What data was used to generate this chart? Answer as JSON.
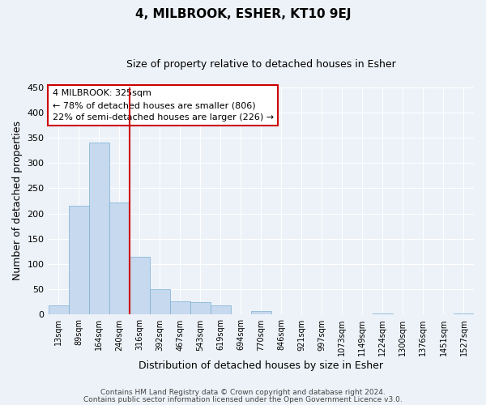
{
  "title": "4, MILBROOK, ESHER, KT10 9EJ",
  "subtitle": "Size of property relative to detached houses in Esher",
  "xlabel": "Distribution of detached houses by size in Esher",
  "ylabel": "Number of detached properties",
  "footnote1": "Contains HM Land Registry data © Crown copyright and database right 2024.",
  "footnote2": "Contains public sector information licensed under the Open Government Licence v3.0.",
  "bar_labels": [
    "13sqm",
    "89sqm",
    "164sqm",
    "240sqm",
    "316sqm",
    "392sqm",
    "467sqm",
    "543sqm",
    "619sqm",
    "694sqm",
    "770sqm",
    "846sqm",
    "921sqm",
    "997sqm",
    "1073sqm",
    "1149sqm",
    "1224sqm",
    "1300sqm",
    "1376sqm",
    "1451sqm",
    "1527sqm"
  ],
  "bar_values": [
    18,
    215,
    340,
    222,
    115,
    51,
    26,
    24,
    19,
    0,
    7,
    0,
    0,
    0,
    0,
    0,
    3,
    0,
    0,
    0,
    2
  ],
  "bar_color": "#c6d9ee",
  "bar_edge_color": "#7aafd4",
  "ylim": [
    0,
    450
  ],
  "yticks": [
    0,
    50,
    100,
    150,
    200,
    250,
    300,
    350,
    400,
    450
  ],
  "vline_x_idx": 3.5,
  "vline_color": "#cc0000",
  "annotation_title": "4 MILBROOK: 325sqm",
  "annotation_line1": "← 78% of detached houses are smaller (806)",
  "annotation_line2": "22% of semi-detached houses are larger (226) →",
  "annotation_box_color": "#cc0000",
  "background_color": "#edf2f8",
  "grid_color": "#ffffff",
  "title_fontsize": 11,
  "subtitle_fontsize": 9
}
